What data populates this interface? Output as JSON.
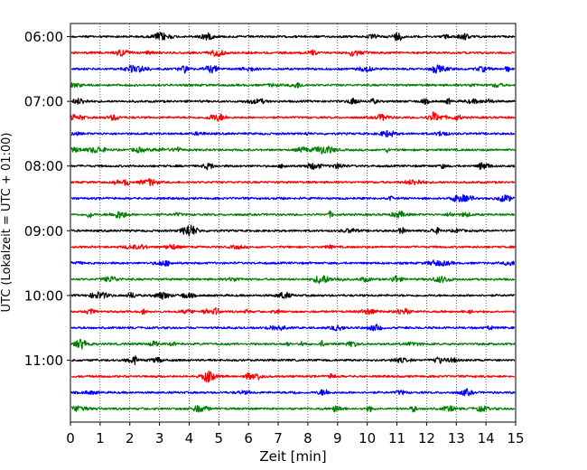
{
  "chart_data": {
    "type": "line",
    "title": "",
    "xlabel": "Zeit  [min]",
    "ylabel": "UTC (Lokalzeit = UTC + 01:00)",
    "xlim": [
      0,
      15
    ],
    "x_ticks": [
      0,
      1,
      2,
      3,
      4,
      5,
      6,
      7,
      8,
      9,
      10,
      11,
      12,
      13,
      14,
      15
    ],
    "x_tick_labels": [
      "0",
      "1",
      "2",
      "3",
      "4",
      "5",
      "6",
      "7",
      "8",
      "9",
      "10",
      "11",
      "12",
      "13",
      "14",
      "15"
    ],
    "y_tick_labels": [
      "06:00",
      "07:00",
      "08:00",
      "09:00",
      "10:00",
      "11:00"
    ],
    "grid": "vertical dotted lines at each minute",
    "line_minutes_per_row": 15,
    "rows": 24,
    "first_row_start": "06:00",
    "color_cycle": [
      "#000000",
      "#ff0000",
      "#0000ff",
      "#008000"
    ],
    "legend": "none"
  }
}
